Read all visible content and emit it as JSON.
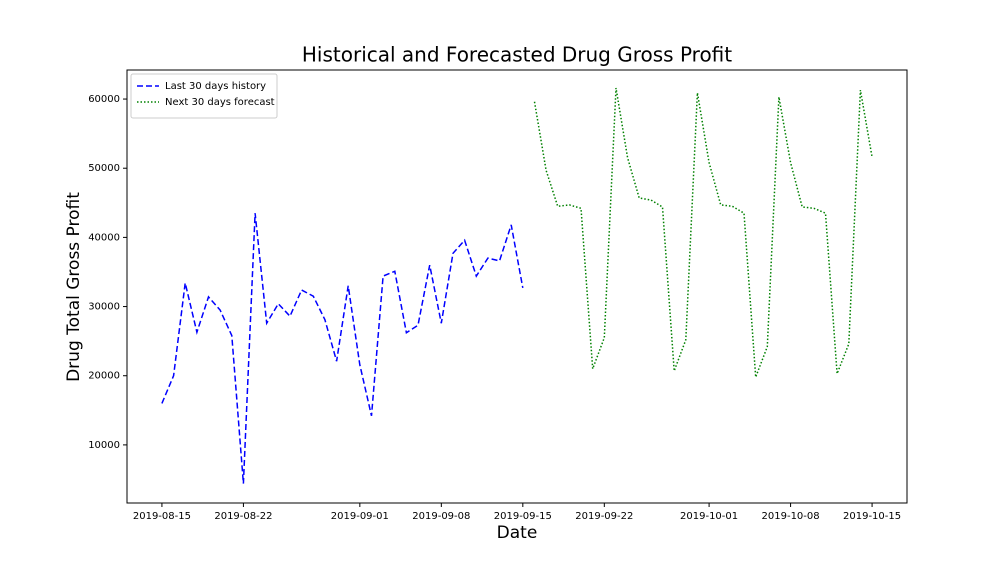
{
  "chart_data": {
    "type": "line",
    "title": "Historical and Forecasted Drug Gross Profit",
    "x_label": "Date",
    "y_label": "Drug Total Gross Profit",
    "xlim": [
      "2019-08-12",
      "2019-10-18"
    ],
    "xticks": [
      "2019-08-15",
      "2019-08-22",
      "2019-09-01",
      "2019-09-08",
      "2019-09-15",
      "2019-09-22",
      "2019-10-01",
      "2019-10-08",
      "2019-10-15"
    ],
    "ylim": [
      1600,
      64200
    ],
    "yticks": [
      10000,
      20000,
      30000,
      40000,
      50000,
      60000
    ],
    "legend": "upper left",
    "series": [
      {
        "name": "Last 30 days history",
        "color": "#0000ff",
        "style": "dashed",
        "x": [
          "2019-08-15",
          "2019-08-16",
          "2019-08-17",
          "2019-08-18",
          "2019-08-19",
          "2019-08-20",
          "2019-08-21",
          "2019-08-22",
          "2019-08-23",
          "2019-08-24",
          "2019-08-25",
          "2019-08-26",
          "2019-08-27",
          "2019-08-28",
          "2019-08-29",
          "2019-08-30",
          "2019-08-31",
          "2019-09-01",
          "2019-09-02",
          "2019-09-03",
          "2019-09-04",
          "2019-09-05",
          "2019-09-06",
          "2019-09-07",
          "2019-09-08",
          "2019-09-09",
          "2019-09-10",
          "2019-09-11",
          "2019-09-12",
          "2019-09-13",
          "2019-09-14",
          "2019-09-15"
        ],
        "values": [
          16000,
          20000,
          33400,
          26300,
          31400,
          29500,
          25800,
          4400,
          43500,
          27600,
          30400,
          28600,
          32400,
          31500,
          28100,
          22100,
          33000,
          21600,
          14200,
          34400,
          35100,
          26200,
          27300,
          36000,
          27600,
          37700,
          39600,
          34400,
          37000,
          36600,
          41800,
          32700
        ]
      },
      {
        "name": "Next 30 days forecast",
        "color": "#008000",
        "style": "dotted",
        "x": [
          "2019-09-16",
          "2019-09-17",
          "2019-09-18",
          "2019-09-19",
          "2019-09-20",
          "2019-09-21",
          "2019-09-22",
          "2019-09-23",
          "2019-09-24",
          "2019-09-25",
          "2019-09-26",
          "2019-09-27",
          "2019-09-28",
          "2019-09-29",
          "2019-09-30",
          "2019-10-01",
          "2019-10-02",
          "2019-10-03",
          "2019-10-04",
          "2019-10-05",
          "2019-10-06",
          "2019-10-07",
          "2019-10-08",
          "2019-10-09",
          "2019-10-10",
          "2019-10-11",
          "2019-10-12",
          "2019-10-13",
          "2019-10-14",
          "2019-10-15"
        ],
        "values": [
          59600,
          49700,
          44500,
          44700,
          44200,
          21000,
          25500,
          61600,
          51500,
          45700,
          45400,
          44400,
          20700,
          25200,
          60900,
          50800,
          44700,
          44500,
          43500,
          19800,
          24200,
          60300,
          50800,
          44400,
          44200,
          43500,
          20300,
          24600,
          61300,
          51600
        ]
      }
    ]
  }
}
